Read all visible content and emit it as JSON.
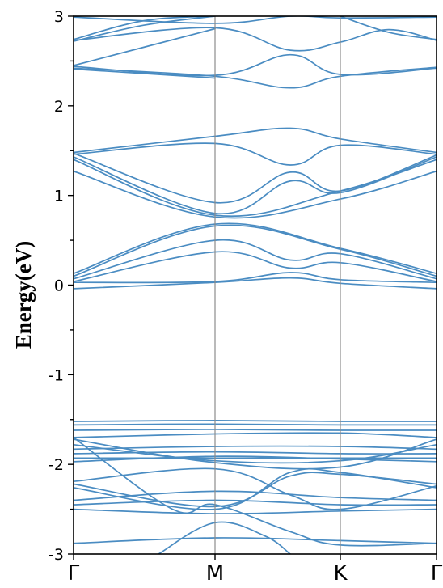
{
  "chart_data": {
    "type": "line",
    "title": "",
    "ylabel": "Energy(eV)",
    "xlabel": "",
    "ylim": [
      -3,
      3
    ],
    "yticks": [
      -3,
      -2,
      -1,
      0,
      1,
      2,
      3
    ],
    "ytick_labels": [
      "-3",
      "-2",
      "-1",
      "0",
      "1",
      "2",
      "3"
    ],
    "k_points": [
      {
        "label": "Γ",
        "x": 0
      },
      {
        "label": "M",
        "x": 1
      },
      {
        "label": "K",
        "x": 2
      },
      {
        "label": "Γ",
        "x": 3
      }
    ],
    "x_range": [
      0,
      3
    ],
    "grid": false,
    "legend": "none",
    "line_color": "#4a8cc2",
    "series": [
      {
        "values": [
          [
            0,
            2.99
          ],
          [
            1,
            2.92
          ],
          [
            1.6,
            3.0
          ],
          [
            2,
            2.98
          ],
          [
            3,
            2.99
          ]
        ]
      },
      {
        "values": [
          [
            0,
            2.74
          ],
          [
            0.5,
            2.95
          ],
          [
            1,
            3.0
          ]
        ]
      },
      {
        "values": [
          [
            0,
            2.73
          ],
          [
            1,
            2.87
          ],
          [
            1.6,
            2.62
          ],
          [
            2,
            2.71
          ],
          [
            2.5,
            2.85
          ],
          [
            3,
            2.73
          ]
        ]
      },
      {
        "values": [
          [
            0,
            2.72
          ],
          [
            0.5,
            2.9
          ],
          [
            1,
            3.0
          ]
        ]
      },
      {
        "values": [
          [
            2,
            3.0
          ],
          [
            2.5,
            2.82
          ],
          [
            3,
            2.74
          ]
        ]
      },
      {
        "values": [
          [
            0,
            2.45
          ],
          [
            1,
            2.86
          ]
        ]
      },
      {
        "values": [
          [
            0,
            2.44
          ],
          [
            1,
            2.34
          ],
          [
            1.6,
            2.57
          ],
          [
            2,
            2.35
          ],
          [
            3,
            2.42
          ]
        ]
      },
      {
        "values": [
          [
            0,
            2.42
          ],
          [
            1,
            2.33
          ],
          [
            1.6,
            2.2
          ],
          [
            2,
            2.33
          ],
          [
            3,
            2.43
          ]
        ]
      },
      {
        "values": [
          [
            0,
            2.41
          ],
          [
            1,
            2.31
          ]
        ]
      },
      {
        "values": [
          [
            0,
            1.48
          ],
          [
            1,
            1.66
          ],
          [
            1.6,
            1.75
          ],
          [
            2,
            1.63
          ],
          [
            3,
            1.48
          ]
        ]
      },
      {
        "values": [
          [
            0,
            1.46
          ],
          [
            1,
            1.58
          ],
          [
            1.6,
            1.34
          ],
          [
            2,
            1.56
          ],
          [
            3,
            1.46
          ]
        ]
      },
      {
        "values": [
          [
            0,
            1.47
          ],
          [
            1,
            0.92
          ],
          [
            1.6,
            1.26
          ],
          [
            2,
            1.05
          ],
          [
            3,
            1.45
          ]
        ]
      },
      {
        "values": [
          [
            0,
            1.43
          ],
          [
            1,
            0.8
          ],
          [
            1.6,
            1.16
          ],
          [
            2,
            1.03
          ],
          [
            3,
            1.43
          ]
        ]
      },
      {
        "values": [
          [
            0,
            1.4
          ],
          [
            1,
            0.78
          ],
          [
            2,
            1.05
          ],
          [
            3,
            1.4
          ]
        ]
      },
      {
        "values": [
          [
            0,
            1.27
          ],
          [
            1,
            0.76
          ],
          [
            2,
            0.96
          ],
          [
            3,
            1.27
          ]
        ]
      },
      {
        "values": [
          [
            0,
            0.13
          ],
          [
            1,
            0.68
          ],
          [
            2,
            0.41
          ],
          [
            3,
            0.13
          ]
        ]
      },
      {
        "values": [
          [
            0,
            0.1
          ],
          [
            1,
            0.66
          ],
          [
            2,
            0.4
          ],
          [
            3,
            0.1
          ]
        ]
      },
      {
        "values": [
          [
            0,
            0.07
          ],
          [
            1,
            0.5
          ],
          [
            1.6,
            0.28
          ],
          [
            2,
            0.35
          ],
          [
            3,
            0.07
          ]
        ]
      },
      {
        "values": [
          [
            0,
            0.04
          ],
          [
            1,
            0.37
          ],
          [
            1.6,
            0.19
          ],
          [
            2,
            0.25
          ],
          [
            3,
            0.04
          ]
        ]
      },
      {
        "values": [
          [
            0,
            0.03
          ],
          [
            1,
            0.04
          ],
          [
            1.6,
            0.14
          ],
          [
            2,
            0.06
          ],
          [
            3,
            0.03
          ]
        ]
      },
      {
        "values": [
          [
            0,
            -0.04
          ],
          [
            1,
            0.03
          ],
          [
            1.6,
            0.08
          ],
          [
            2,
            0.02
          ],
          [
            3,
            -0.04
          ]
        ]
      },
      {
        "values": [
          [
            0,
            -1.52
          ],
          [
            1,
            -1.51
          ],
          [
            2,
            -1.52
          ],
          [
            3,
            -1.52
          ]
        ]
      },
      {
        "values": [
          [
            0,
            -1.56
          ],
          [
            1,
            -1.55
          ],
          [
            2,
            -1.56
          ],
          [
            3,
            -1.56
          ]
        ]
      },
      {
        "values": [
          [
            0,
            -1.62
          ],
          [
            1,
            -1.61
          ],
          [
            2,
            -1.62
          ],
          [
            3,
            -1.62
          ]
        ]
      },
      {
        "values": [
          [
            0,
            -1.7
          ],
          [
            1,
            -1.66
          ],
          [
            2,
            -1.65
          ],
          [
            3,
            -1.7
          ]
        ]
      },
      {
        "values": [
          [
            0,
            -1.72
          ],
          [
            1,
            -1.98
          ],
          [
            2,
            -2.03
          ],
          [
            3,
            -1.72
          ]
        ]
      },
      {
        "values": [
          [
            0,
            -1.78
          ],
          [
            1,
            -1.96
          ],
          [
            2,
            -1.96
          ],
          [
            3,
            -1.78
          ]
        ]
      },
      {
        "values": [
          [
            0,
            -1.83
          ],
          [
            1,
            -1.8
          ],
          [
            2,
            -1.8
          ],
          [
            3,
            -1.83
          ]
        ]
      },
      {
        "values": [
          [
            0,
            -1.88
          ],
          [
            1,
            -1.86
          ],
          [
            2,
            -1.88
          ],
          [
            3,
            -1.88
          ]
        ]
      },
      {
        "values": [
          [
            0,
            -1.93
          ],
          [
            1,
            -1.93
          ],
          [
            2,
            -1.93
          ],
          [
            3,
            -1.93
          ]
        ]
      },
      {
        "values": [
          [
            0,
            -1.97
          ],
          [
            1,
            -1.91
          ],
          [
            2,
            -1.94
          ],
          [
            3,
            -1.97
          ]
        ]
      },
      {
        "values": [
          [
            0,
            -2.19
          ],
          [
            1,
            -2.05
          ],
          [
            1.6,
            -2.34
          ],
          [
            2,
            -2.5
          ],
          [
            3,
            -2.24
          ]
        ]
      },
      {
        "values": [
          [
            0,
            -2.22
          ],
          [
            1,
            -2.47
          ],
          [
            1.6,
            -2.13
          ],
          [
            2,
            -2.11
          ],
          [
            3,
            -2.22
          ]
        ]
      },
      {
        "values": [
          [
            0,
            -2.26
          ],
          [
            1,
            -2.5
          ],
          [
            1.6,
            -2.09
          ],
          [
            2,
            -2.09
          ],
          [
            3,
            -2.26
          ]
        ]
      },
      {
        "values": [
          [
            0,
            -2.4
          ],
          [
            1,
            -2.3
          ],
          [
            2,
            -2.37
          ],
          [
            3,
            -2.4
          ]
        ]
      },
      {
        "values": [
          [
            0,
            -2.45
          ],
          [
            1,
            -2.4
          ],
          [
            2,
            -2.45
          ],
          [
            3,
            -2.45
          ]
        ]
      },
      {
        "values": [
          [
            0,
            -2.5
          ],
          [
            1,
            -2.55
          ],
          [
            2,
            -2.52
          ],
          [
            3,
            -2.5
          ]
        ]
      },
      {
        "values": [
          [
            0,
            -1.7
          ],
          [
            0.7,
            -2.5
          ],
          [
            1,
            -2.45
          ],
          [
            1.6,
            -2.75
          ],
          [
            2,
            -2.9
          ],
          [
            3,
            -2.88
          ]
        ]
      },
      {
        "values": [
          [
            0,
            -2.88
          ],
          [
            1,
            -2.82
          ],
          [
            2,
            -2.85
          ],
          [
            3,
            -2.88
          ]
        ]
      },
      {
        "values": [
          [
            0.6,
            -3.0
          ],
          [
            1,
            -2.65
          ],
          [
            1.4,
            -2.8
          ],
          [
            1.6,
            -3.0
          ]
        ]
      }
    ]
  }
}
